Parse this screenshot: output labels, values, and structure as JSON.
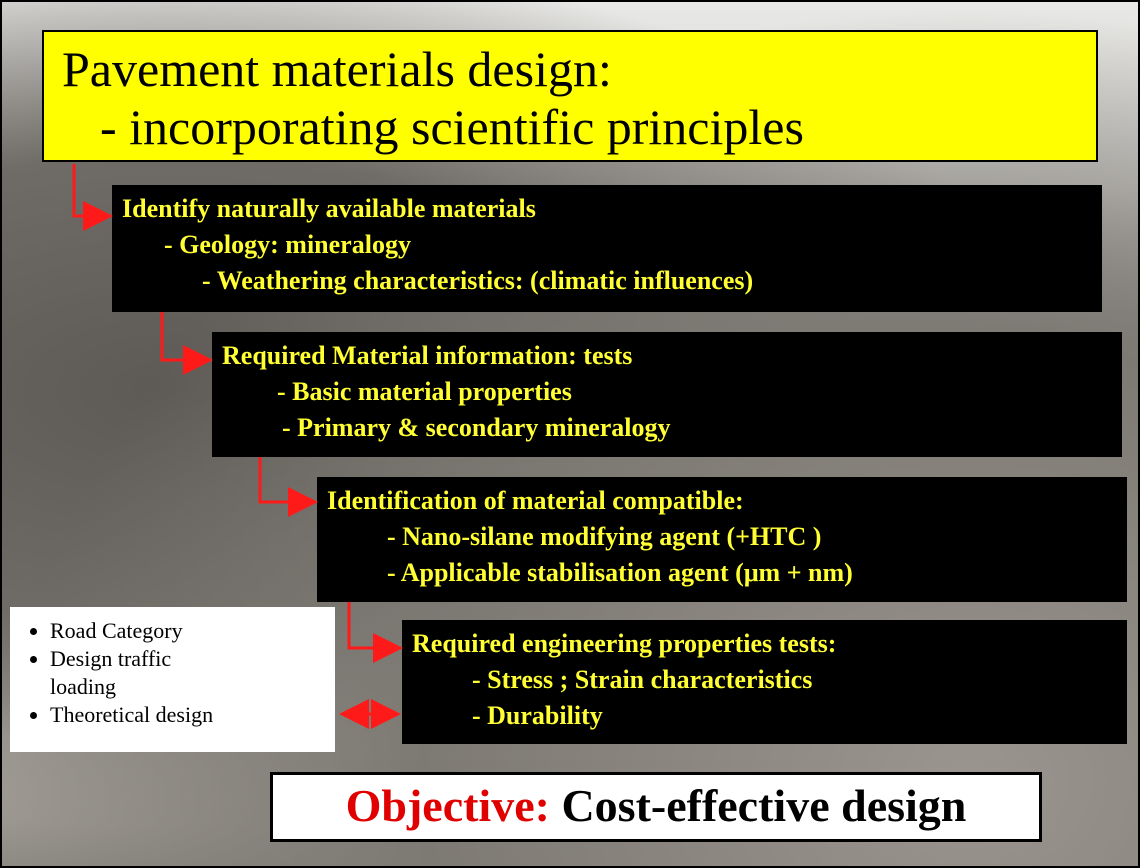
{
  "title": {
    "lines": [
      "Pavement materials design:",
      "- incorporating scientific principles"
    ]
  },
  "steps": [
    {
      "lines": [
        "Identify naturally available materials",
        "- Geology: mineralogy",
        "- Weathering characteristics: (climatic influences)"
      ]
    },
    {
      "lines": [
        "Required Material information: tests",
        "- Basic material properties",
        "- Primary & secondary mineralogy"
      ]
    },
    {
      "lines": [
        "Identification of material compatible:",
        "- Nano-silane modifying agent (+HTC )",
        "- Applicable stabilisation agent (μm + nm)"
      ]
    },
    {
      "lines": [
        "Required engineering properties tests:",
        "- Stress ; Strain characteristics",
        "- Durability"
      ]
    }
  ],
  "sidebar": {
    "items": [
      "Road Category",
      "Design traffic loading",
      "Theoretical design"
    ]
  },
  "objective": {
    "label": "Objective:",
    "text": "Cost-effective design"
  }
}
